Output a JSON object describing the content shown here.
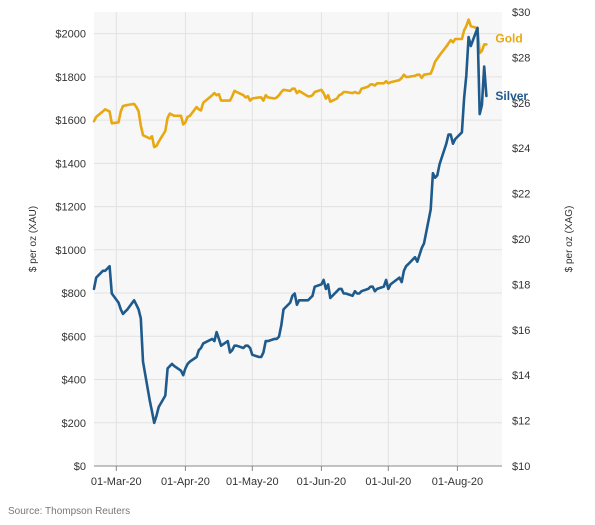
{
  "source": "Source: Thompson Reuters",
  "chart_data": {
    "type": "line",
    "background": "#f7f7f7",
    "grid": true,
    "legend": "inline-right",
    "x_ticks": [
      "01-Mar-20",
      "01-Apr-20",
      "01-May-20",
      "01-Jun-20",
      "01-Jul-20",
      "01-Aug-20"
    ],
    "x_range": [
      "2020-02-20",
      "2020-08-21"
    ],
    "y_left": {
      "label": "$ per oz (XAU)",
      "range": [
        0,
        2100
      ],
      "ticks": [
        "$0",
        "$200",
        "$400",
        "$600",
        "$800",
        "$1000",
        "$1200",
        "$1400",
        "$1600",
        "$1800",
        "$2000"
      ],
      "tick_values": [
        0,
        200,
        400,
        600,
        800,
        1000,
        1200,
        1400,
        1600,
        1800,
        2000
      ]
    },
    "y_right": {
      "label": "$ per oz (XAG)",
      "range": [
        10,
        30
      ],
      "ticks": [
        "$10",
        "$12",
        "$14",
        "$16",
        "$18",
        "$20",
        "$22",
        "$24",
        "$26",
        "$28",
        "$30"
      ],
      "tick_values": [
        10,
        12,
        14,
        16,
        18,
        20,
        22,
        24,
        26,
        28,
        30
      ]
    },
    "series": [
      {
        "name": "Gold",
        "axis": "left",
        "color": "#e8a812",
        "points": [
          [
            "2020-02-20",
            1595
          ],
          [
            "2020-02-21",
            1615
          ],
          [
            "2020-02-24",
            1640
          ],
          [
            "2020-02-25",
            1650
          ],
          [
            "2020-02-26",
            1645
          ],
          [
            "2020-02-27",
            1640
          ],
          [
            "2020-02-28",
            1585
          ],
          [
            "2020-03-02",
            1590
          ],
          [
            "2020-03-03",
            1640
          ],
          [
            "2020-03-04",
            1665
          ],
          [
            "2020-03-06",
            1670
          ],
          [
            "2020-03-09",
            1675
          ],
          [
            "2020-03-10",
            1660
          ],
          [
            "2020-03-11",
            1640
          ],
          [
            "2020-03-12",
            1575
          ],
          [
            "2020-03-13",
            1530
          ],
          [
            "2020-03-16",
            1515
          ],
          [
            "2020-03-17",
            1525
          ],
          [
            "2020-03-18",
            1475
          ],
          [
            "2020-03-19",
            1480
          ],
          [
            "2020-03-20",
            1500
          ],
          [
            "2020-03-23",
            1550
          ],
          [
            "2020-03-24",
            1610
          ],
          [
            "2020-03-25",
            1630
          ],
          [
            "2020-03-26",
            1625
          ],
          [
            "2020-03-27",
            1620
          ],
          [
            "2020-03-30",
            1620
          ],
          [
            "2020-03-31",
            1580
          ],
          [
            "2020-04-01",
            1590
          ],
          [
            "2020-04-02",
            1615
          ],
          [
            "2020-04-03",
            1620
          ],
          [
            "2020-04-06",
            1660
          ],
          [
            "2020-04-07",
            1650
          ],
          [
            "2020-04-08",
            1645
          ],
          [
            "2020-04-09",
            1680
          ],
          [
            "2020-04-13",
            1715
          ],
          [
            "2020-04-14",
            1725
          ],
          [
            "2020-04-15",
            1715
          ],
          [
            "2020-04-16",
            1720
          ],
          [
            "2020-04-17",
            1690
          ],
          [
            "2020-04-20",
            1690
          ],
          [
            "2020-04-21",
            1690
          ],
          [
            "2020-04-22",
            1710
          ],
          [
            "2020-04-23",
            1735
          ],
          [
            "2020-04-24",
            1730
          ],
          [
            "2020-04-27",
            1715
          ],
          [
            "2020-04-28",
            1705
          ],
          [
            "2020-04-29",
            1710
          ],
          [
            "2020-04-30",
            1690
          ],
          [
            "2020-05-01",
            1700
          ],
          [
            "2020-05-04",
            1705
          ],
          [
            "2020-05-05",
            1705
          ],
          [
            "2020-05-06",
            1690
          ],
          [
            "2020-05-07",
            1715
          ],
          [
            "2020-05-08",
            1705
          ],
          [
            "2020-05-11",
            1700
          ],
          [
            "2020-05-12",
            1705
          ],
          [
            "2020-05-13",
            1715
          ],
          [
            "2020-05-14",
            1730
          ],
          [
            "2020-05-15",
            1740
          ],
          [
            "2020-05-18",
            1735
          ],
          [
            "2020-05-19",
            1745
          ],
          [
            "2020-05-20",
            1745
          ],
          [
            "2020-05-21",
            1725
          ],
          [
            "2020-05-22",
            1735
          ],
          [
            "2020-05-26",
            1710
          ],
          [
            "2020-05-27",
            1710
          ],
          [
            "2020-05-28",
            1715
          ],
          [
            "2020-05-29",
            1730
          ],
          [
            "2020-06-01",
            1740
          ],
          [
            "2020-06-02",
            1725
          ],
          [
            "2020-06-03",
            1700
          ],
          [
            "2020-06-04",
            1715
          ],
          [
            "2020-06-05",
            1685
          ],
          [
            "2020-06-08",
            1700
          ],
          [
            "2020-06-09",
            1715
          ],
          [
            "2020-06-10",
            1720
          ],
          [
            "2020-06-11",
            1730
          ],
          [
            "2020-06-12",
            1730
          ],
          [
            "2020-06-15",
            1725
          ],
          [
            "2020-06-16",
            1730
          ],
          [
            "2020-06-17",
            1725
          ],
          [
            "2020-06-18",
            1725
          ],
          [
            "2020-06-19",
            1745
          ],
          [
            "2020-06-22",
            1755
          ],
          [
            "2020-06-23",
            1765
          ],
          [
            "2020-06-24",
            1765
          ],
          [
            "2020-06-25",
            1760
          ],
          [
            "2020-06-26",
            1770
          ],
          [
            "2020-06-29",
            1770
          ],
          [
            "2020-06-30",
            1780
          ],
          [
            "2020-07-01",
            1770
          ],
          [
            "2020-07-02",
            1775
          ],
          [
            "2020-07-06",
            1785
          ],
          [
            "2020-07-07",
            1795
          ],
          [
            "2020-07-08",
            1810
          ],
          [
            "2020-07-09",
            1800
          ],
          [
            "2020-07-10",
            1800
          ],
          [
            "2020-07-13",
            1805
          ],
          [
            "2020-07-14",
            1810
          ],
          [
            "2020-07-15",
            1810
          ],
          [
            "2020-07-16",
            1795
          ],
          [
            "2020-07-17",
            1810
          ],
          [
            "2020-07-20",
            1815
          ],
          [
            "2020-07-21",
            1840
          ],
          [
            "2020-07-22",
            1870
          ],
          [
            "2020-07-23",
            1885
          ],
          [
            "2020-07-24",
            1900
          ],
          [
            "2020-07-27",
            1940
          ],
          [
            "2020-07-28",
            1955
          ],
          [
            "2020-07-29",
            1970
          ],
          [
            "2020-07-30",
            1960
          ],
          [
            "2020-07-31",
            1975
          ],
          [
            "2020-08-03",
            1975
          ],
          [
            "2020-08-04",
            2015
          ],
          [
            "2020-08-05",
            2035
          ],
          [
            "2020-08-06",
            2065
          ],
          [
            "2020-08-07",
            2035
          ],
          [
            "2020-08-10",
            2025
          ],
          [
            "2020-08-11",
            1910
          ],
          [
            "2020-08-12",
            1920
          ],
          [
            "2020-08-13",
            1950
          ],
          [
            "2020-08-14",
            1950
          ]
        ]
      },
      {
        "name": "Silver",
        "axis": "right",
        "color": "#1f5a8c",
        "points": [
          [
            "2020-02-20",
            17.8
          ],
          [
            "2020-02-21",
            18.3
          ],
          [
            "2020-02-24",
            18.6
          ],
          [
            "2020-02-25",
            18.6
          ],
          [
            "2020-02-26",
            18.7
          ],
          [
            "2020-02-27",
            18.8
          ],
          [
            "2020-02-28",
            17.6
          ],
          [
            "2020-03-02",
            17.2
          ],
          [
            "2020-03-03",
            16.9
          ],
          [
            "2020-03-04",
            16.7
          ],
          [
            "2020-03-05",
            16.8
          ],
          [
            "2020-03-06",
            16.9
          ],
          [
            "2020-03-09",
            17.3
          ],
          [
            "2020-03-10",
            17.1
          ],
          [
            "2020-03-11",
            16.9
          ],
          [
            "2020-03-12",
            16.5
          ],
          [
            "2020-03-13",
            14.6
          ],
          [
            "2020-03-16",
            12.9
          ],
          [
            "2020-03-17",
            12.4
          ],
          [
            "2020-03-18",
            11.9
          ],
          [
            "2020-03-19",
            12.2
          ],
          [
            "2020-03-20",
            12.6
          ],
          [
            "2020-03-23",
            13.1
          ],
          [
            "2020-03-24",
            14.3
          ],
          [
            "2020-03-25",
            14.4
          ],
          [
            "2020-03-26",
            14.5
          ],
          [
            "2020-03-27",
            14.4
          ],
          [
            "2020-03-30",
            14.2
          ],
          [
            "2020-03-31",
            14.0
          ],
          [
            "2020-04-01",
            14.3
          ],
          [
            "2020-04-02",
            14.5
          ],
          [
            "2020-04-03",
            14.6
          ],
          [
            "2020-04-06",
            14.8
          ],
          [
            "2020-04-07",
            15.1
          ],
          [
            "2020-04-08",
            15.2
          ],
          [
            "2020-04-09",
            15.4
          ],
          [
            "2020-04-13",
            15.6
          ],
          [
            "2020-04-14",
            15.5
          ],
          [
            "2020-04-15",
            15.9
          ],
          [
            "2020-04-16",
            15.6
          ],
          [
            "2020-04-17",
            15.3
          ],
          [
            "2020-04-20",
            15.5
          ],
          [
            "2020-04-21",
            15.0
          ],
          [
            "2020-04-22",
            15.1
          ],
          [
            "2020-04-23",
            15.3
          ],
          [
            "2020-04-24",
            15.3
          ],
          [
            "2020-04-27",
            15.2
          ],
          [
            "2020-04-28",
            15.3
          ],
          [
            "2020-04-29",
            15.3
          ],
          [
            "2020-04-30",
            15.2
          ],
          [
            "2020-05-01",
            14.9
          ],
          [
            "2020-05-04",
            14.8
          ],
          [
            "2020-05-05",
            14.8
          ],
          [
            "2020-05-06",
            15.0
          ],
          [
            "2020-05-07",
            15.5
          ],
          [
            "2020-05-08",
            15.5
          ],
          [
            "2020-05-11",
            15.6
          ],
          [
            "2020-05-12",
            15.6
          ],
          [
            "2020-05-13",
            15.7
          ],
          [
            "2020-05-14",
            16.2
          ],
          [
            "2020-05-15",
            16.9
          ],
          [
            "2020-05-18",
            17.2
          ],
          [
            "2020-05-19",
            17.5
          ],
          [
            "2020-05-20",
            17.6
          ],
          [
            "2020-05-21",
            17.1
          ],
          [
            "2020-05-22",
            17.3
          ],
          [
            "2020-05-26",
            17.3
          ],
          [
            "2020-05-27",
            17.4
          ],
          [
            "2020-05-28",
            17.5
          ],
          [
            "2020-05-29",
            17.9
          ],
          [
            "2020-06-01",
            18.0
          ],
          [
            "2020-06-02",
            18.2
          ],
          [
            "2020-06-03",
            17.8
          ],
          [
            "2020-06-04",
            18.0
          ],
          [
            "2020-06-05",
            17.4
          ],
          [
            "2020-06-08",
            17.7
          ],
          [
            "2020-06-09",
            17.8
          ],
          [
            "2020-06-10",
            17.8
          ],
          [
            "2020-06-11",
            17.6
          ],
          [
            "2020-06-12",
            17.6
          ],
          [
            "2020-06-15",
            17.5
          ],
          [
            "2020-06-16",
            17.7
          ],
          [
            "2020-06-17",
            17.6
          ],
          [
            "2020-06-18",
            17.6
          ],
          [
            "2020-06-19",
            17.7
          ],
          [
            "2020-06-22",
            17.8
          ],
          [
            "2020-06-23",
            17.9
          ],
          [
            "2020-06-24",
            17.9
          ],
          [
            "2020-06-25",
            17.7
          ],
          [
            "2020-06-26",
            17.8
          ],
          [
            "2020-06-29",
            17.9
          ],
          [
            "2020-06-30",
            18.2
          ],
          [
            "2020-07-01",
            17.8
          ],
          [
            "2020-07-02",
            18.0
          ],
          [
            "2020-07-06",
            18.3
          ],
          [
            "2020-07-07",
            18.1
          ],
          [
            "2020-07-08",
            18.6
          ],
          [
            "2020-07-09",
            18.8
          ],
          [
            "2020-07-10",
            18.9
          ],
          [
            "2020-07-13",
            19.2
          ],
          [
            "2020-07-14",
            19.0
          ],
          [
            "2020-07-15",
            19.3
          ],
          [
            "2020-07-16",
            19.6
          ],
          [
            "2020-07-17",
            19.8
          ],
          [
            "2020-07-20",
            21.3
          ],
          [
            "2020-07-21",
            22.9
          ],
          [
            "2020-07-22",
            22.7
          ],
          [
            "2020-07-23",
            22.8
          ],
          [
            "2020-07-24",
            23.3
          ],
          [
            "2020-07-27",
            24.2
          ],
          [
            "2020-07-28",
            24.6
          ],
          [
            "2020-07-29",
            24.6
          ],
          [
            "2020-07-30",
            24.2
          ],
          [
            "2020-07-31",
            24.4
          ],
          [
            "2020-08-03",
            24.7
          ],
          [
            "2020-08-04",
            26.2
          ],
          [
            "2020-08-05",
            27.2
          ],
          [
            "2020-08-06",
            28.9
          ],
          [
            "2020-08-07",
            28.5
          ],
          [
            "2020-08-10",
            29.3
          ],
          [
            "2020-08-11",
            25.5
          ],
          [
            "2020-08-12",
            25.9
          ],
          [
            "2020-08-13",
            27.6
          ],
          [
            "2020-08-14",
            26.3
          ]
        ]
      }
    ]
  }
}
